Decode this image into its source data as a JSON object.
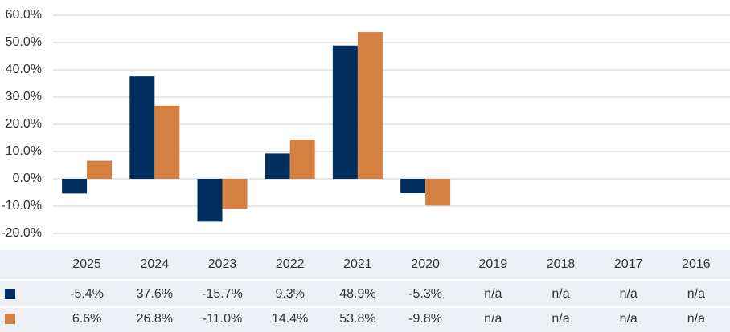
{
  "chart_data": {
    "type": "bar",
    "categories": [
      "2025",
      "2024",
      "2023",
      "2022",
      "2021",
      "2020",
      "2019",
      "2018",
      "2017",
      "2016"
    ],
    "series": [
      {
        "color": "#002f5f",
        "values": [
          -5.4,
          37.6,
          -15.7,
          9.3,
          48.9,
          -5.3,
          null,
          null,
          null,
          null
        ],
        "value_labels": [
          "-5.4%",
          "37.6%",
          "-15.7%",
          "9.3%",
          "48.9%",
          "-5.3%",
          "n/a",
          "n/a",
          "n/a",
          "n/a"
        ]
      },
      {
        "color": "#d57f40",
        "values": [
          6.6,
          26.8,
          -11.0,
          14.4,
          53.8,
          -9.8,
          null,
          null,
          null,
          null
        ],
        "value_labels": [
          "6.6%",
          "26.8%",
          "-11.0%",
          "14.4%",
          "53.8%",
          "-9.8%",
          "n/a",
          "n/a",
          "n/a",
          "n/a"
        ]
      }
    ],
    "ylim": [
      -20,
      60
    ],
    "yticks": [
      {
        "value": -20,
        "label": "-20.0%"
      },
      {
        "value": -10,
        "label": "-10.0%"
      },
      {
        "value": 0,
        "label": "0.0%"
      },
      {
        "value": 10,
        "label": "10.0%"
      },
      {
        "value": 20,
        "label": "20.0%"
      },
      {
        "value": 30,
        "label": "30.0%"
      },
      {
        "value": 40,
        "label": "40.0%"
      },
      {
        "value": 50,
        "label": "50.0%"
      },
      {
        "value": 60,
        "label": "60.0%"
      }
    ],
    "grid": true
  }
}
